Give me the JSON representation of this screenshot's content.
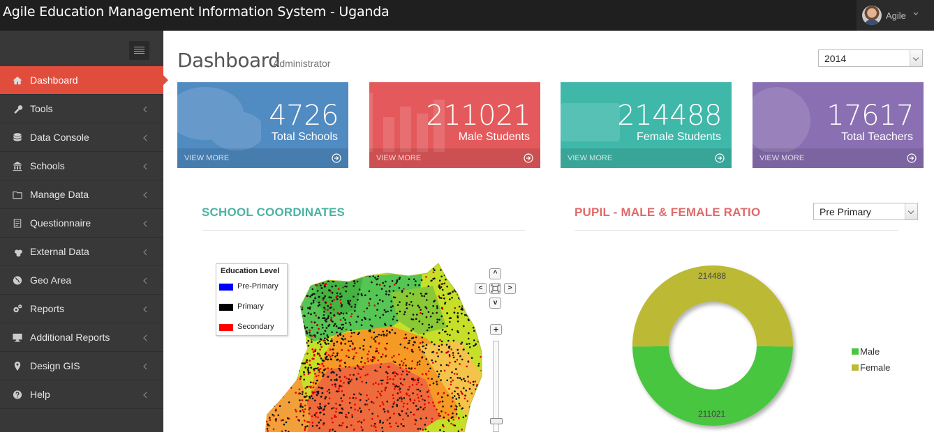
{
  "app": {
    "title": "Agile Education Management Information System - Uganda"
  },
  "user": {
    "name": "Agile"
  },
  "sidebar": {
    "items": [
      {
        "label": "Dashboard",
        "icon": "home-icon",
        "active": true
      },
      {
        "label": "Tools",
        "icon": "wrench-icon"
      },
      {
        "label": "Data Console",
        "icon": "database-icon"
      },
      {
        "label": "Schools",
        "icon": "institution-icon"
      },
      {
        "label": "Manage Data",
        "icon": "folder-icon"
      },
      {
        "label": "Questionnaire",
        "icon": "questionnaire-icon"
      },
      {
        "label": "External Data",
        "icon": "cubes-icon"
      },
      {
        "label": "Geo Area",
        "icon": "globe-icon"
      },
      {
        "label": "Reports",
        "icon": "cogs-icon"
      },
      {
        "label": "Additional Reports",
        "icon": "desktop-icon"
      },
      {
        "label": "Design GIS",
        "icon": "map-marker-icon"
      },
      {
        "label": "Help",
        "icon": "question-circle-icon"
      }
    ]
  },
  "header": {
    "title": "Dashboard",
    "subtitle": "Administrator",
    "year": "2014"
  },
  "stats": [
    {
      "value": "4726",
      "label": "Total Schools",
      "link": "VIEW MORE",
      "color": "#508bc2",
      "icon": "comments-icon"
    },
    {
      "value": "211021",
      "label": "Male Students",
      "link": "VIEW MORE",
      "color": "#e45a5c",
      "icon": "bar-chart-icon"
    },
    {
      "value": "214488",
      "label": "Female Students",
      "link": "VIEW MORE",
      "color": "#3fb8aa",
      "icon": "desktop-icon"
    },
    {
      "value": "17617",
      "label": "Total Teachers",
      "link": "VIEW MORE",
      "color": "#8a70b2",
      "icon": "globe-icon"
    }
  ],
  "map_section": {
    "title": "SCHOOL COORDINATES",
    "title_color": "#4bb3a4",
    "legend": {
      "title": "Education Level",
      "items": [
        {
          "label": "Pre-Primary",
          "color": "#0000ff"
        },
        {
          "label": "Primary",
          "color": "#000000"
        },
        {
          "label": "Secondary",
          "color": "#ff0000"
        }
      ]
    },
    "controls": {
      "up": "^",
      "left": "<",
      "right": ">",
      "down": "v",
      "zoom_in": "+"
    }
  },
  "ratio_section": {
    "title": "PUPIL - MALE & FEMALE RATIO",
    "title_color": "#e06a6a",
    "level": "Pre Primary"
  },
  "chart_data": {
    "type": "pie",
    "variant": "donut",
    "title": "PUPIL - MALE & FEMALE RATIO",
    "series": [
      {
        "name": "Male",
        "value": 211021,
        "color": "#48c640"
      },
      {
        "name": "Female",
        "value": 214488,
        "color": "#bcb934"
      }
    ],
    "legend": "right"
  }
}
